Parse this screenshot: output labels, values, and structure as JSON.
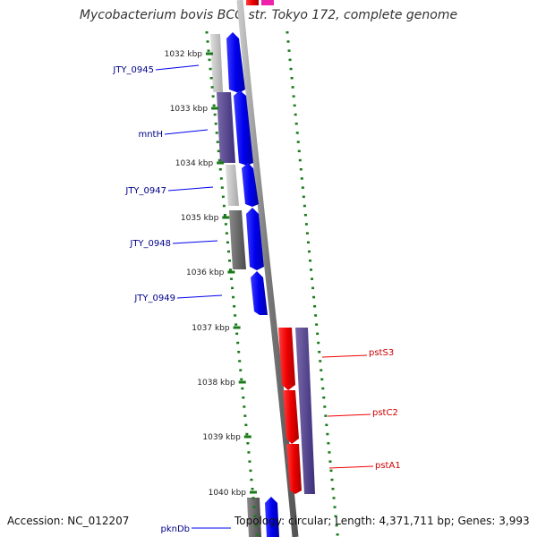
{
  "title": "Mycobacterium bovis BCG str. Tokyo 172, complete genome",
  "footer": {
    "accession": "Accession: NC_012207",
    "stats": "Topology: circular; Length: 4,371,711 bp; Genes: 3,993"
  },
  "colors": {
    "backbone": "#7a7a7a",
    "forward_cds": "#0000ee",
    "reverse_cds": "#ee0000",
    "tick": "#1a7a1a",
    "label_blue": "#00008b",
    "label_red": "#cc0000"
  },
  "ticks": [
    {
      "label": "1032 kbp"
    },
    {
      "label": "1033 kbp"
    },
    {
      "label": "1034 kbp"
    },
    {
      "label": "1035 kbp"
    },
    {
      "label": "1036 kbp"
    },
    {
      "label": "1037 kbp"
    },
    {
      "label": "1038 kbp"
    },
    {
      "label": "1039 kbp"
    },
    {
      "label": "1040 kbp"
    }
  ],
  "genes": [
    {
      "label": "JTY_0945",
      "strand": "forward"
    },
    {
      "label": "mntH",
      "strand": "forward"
    },
    {
      "label": "JTY_0947",
      "strand": "forward"
    },
    {
      "label": "JTY_0948",
      "strand": "forward"
    },
    {
      "label": "JTY_0949",
      "strand": "forward"
    },
    {
      "label": "pstS3",
      "strand": "reverse"
    },
    {
      "label": "pstC2",
      "strand": "reverse"
    },
    {
      "label": "pstA1",
      "strand": "reverse"
    },
    {
      "label": "pknDb",
      "strand": "forward"
    }
  ]
}
